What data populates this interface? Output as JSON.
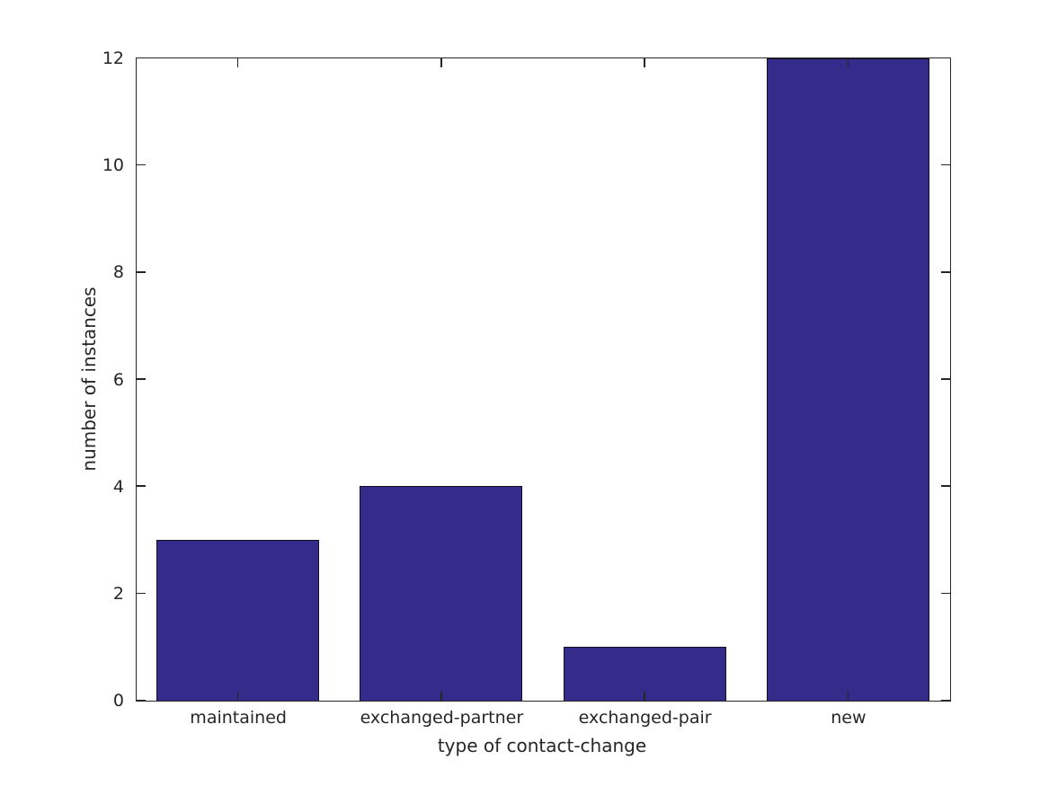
{
  "chart_data": {
    "type": "bar",
    "title": "",
    "categories": [
      "maintained",
      "exchanged-partner",
      "exchanged-pair",
      "new"
    ],
    "values": [
      3,
      4,
      1,
      12
    ],
    "xlabel": "type of contact-change",
    "ylabel": "number of instances",
    "ylim": [
      0,
      12
    ],
    "yticks": [
      0,
      2,
      4,
      6,
      8,
      10,
      12
    ],
    "bar_width_fraction": 0.8,
    "bar_color": "#342b8a",
    "bar_edge_color": "#111122",
    "axis_color": "#262626",
    "background_color": "#ffffff",
    "grid": false,
    "legend": "none",
    "tick_direction": "in",
    "ticks_mirrored": true
  }
}
